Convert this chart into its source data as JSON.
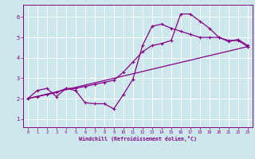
{
  "background_color": "#cce8ec",
  "grid_color": "#ffffff",
  "line_color": "#880088",
  "xlabel": "Windchill (Refroidissement éolien,°C)",
  "xlim": [
    -0.5,
    23.5
  ],
  "ylim": [
    0.6,
    6.6
  ],
  "xticks": [
    0,
    1,
    2,
    3,
    4,
    5,
    6,
    7,
    8,
    9,
    10,
    11,
    12,
    13,
    14,
    15,
    16,
    17,
    18,
    19,
    20,
    21,
    22,
    23
  ],
  "yticks": [
    1,
    2,
    3,
    4,
    5,
    6
  ],
  "line1_x": [
    0,
    1,
    2,
    3,
    4,
    5,
    6,
    7,
    8,
    9,
    10,
    11,
    12,
    13,
    14,
    15,
    16,
    17,
    18,
    19,
    20,
    21,
    22,
    23
  ],
  "line1_y": [
    2.0,
    2.4,
    2.5,
    2.1,
    2.5,
    2.4,
    1.8,
    1.75,
    1.75,
    1.5,
    2.2,
    2.95,
    4.6,
    5.55,
    5.65,
    5.45,
    5.3,
    5.15,
    5.0,
    5.0,
    5.0,
    4.85,
    4.85,
    4.55
  ],
  "line2_x": [
    0,
    1,
    2,
    3,
    4,
    5,
    6,
    7,
    8,
    9,
    10,
    11,
    12,
    13,
    14,
    15,
    16,
    17,
    18,
    19,
    20,
    21,
    22,
    23
  ],
  "line2_y": [
    2.0,
    2.1,
    2.2,
    2.3,
    2.5,
    2.5,
    2.6,
    2.7,
    2.8,
    2.9,
    3.3,
    3.8,
    4.3,
    4.6,
    4.7,
    4.85,
    6.15,
    6.15,
    5.8,
    5.45,
    5.0,
    4.8,
    4.9,
    4.6
  ],
  "line3_x": [
    0,
    23
  ],
  "line3_y": [
    2.0,
    4.55
  ]
}
